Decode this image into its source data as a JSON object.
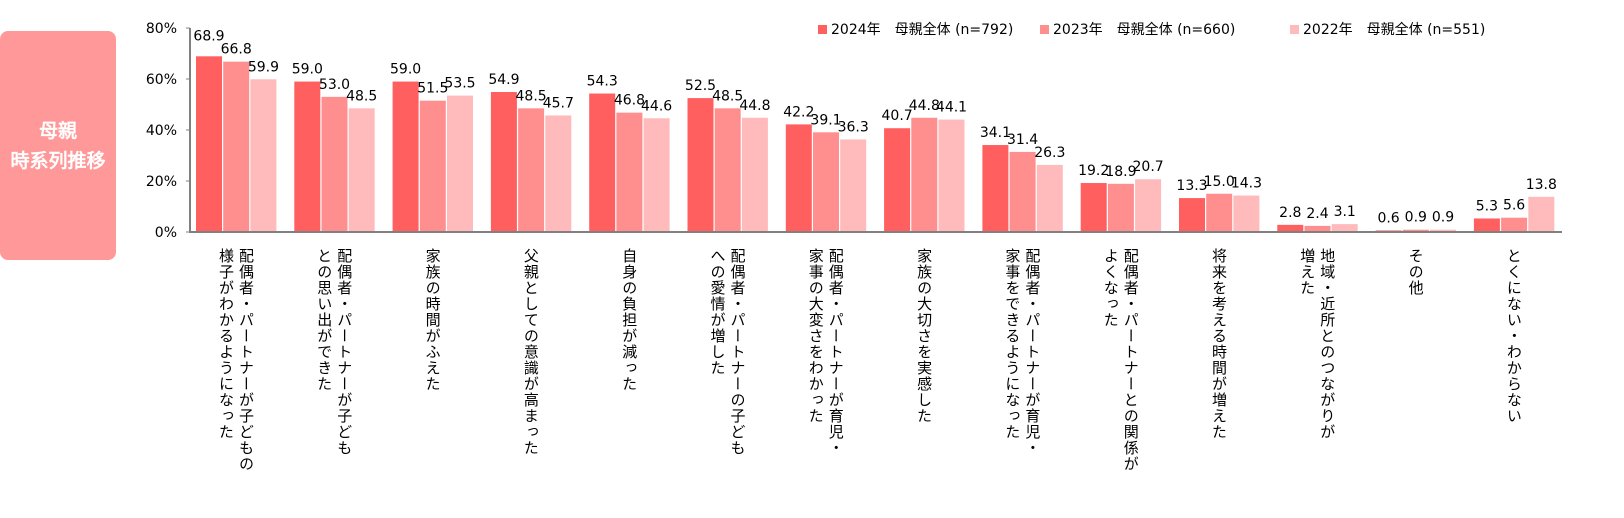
{
  "side_label": "母親\n時系列推移",
  "chart_data": {
    "type": "bar",
    "ylim": [
      0,
      80
    ],
    "yticks": [
      "0%",
      "20%",
      "40%",
      "60%",
      "80%"
    ],
    "legend_position": "top-right",
    "categories": [
      "配偶者・パートナーが子どもの\n様子がわかるようになった",
      "配偶者・パートナーが子ども\nとの思い出ができた",
      "家族の時間がふえた",
      "父親としての意識が高まった",
      "自身の負担が減った",
      "配偶者・パートナーの子ども\nへの愛情が増した",
      "配偶者・パートナーが育児・\n家事の大変さをわかった",
      "家族の大切さを実感した",
      "配偶者・パートナーが育児・\n家事をできるようになった",
      "配偶者・パートナーとの関係が\nよくなった",
      "将来を考える時間が増えた",
      "地域・近所とのつながりが\n増えた",
      "その他",
      "とくにない・わからない"
    ],
    "series": [
      {
        "name": "2024年　母親全体 (n=792)",
        "color": "#ff5f5f",
        "values": [
          68.9,
          59.0,
          59.0,
          54.9,
          54.3,
          52.5,
          42.2,
          40.7,
          34.1,
          19.2,
          13.3,
          2.8,
          0.6,
          5.3
        ]
      },
      {
        "name": "2023年　母親全体 (n=660)",
        "color": "#ff8f8f",
        "values": [
          66.8,
          53.0,
          51.5,
          48.5,
          46.8,
          48.5,
          39.1,
          44.8,
          31.4,
          18.9,
          15.0,
          2.4,
          0.9,
          5.6
        ]
      },
      {
        "name": "2022年　母親全体 (n=551)",
        "color": "#ffbbbb",
        "values": [
          59.9,
          48.5,
          53.5,
          45.7,
          44.6,
          44.8,
          36.3,
          44.1,
          26.3,
          20.7,
          14.3,
          3.1,
          0.9,
          13.8
        ]
      }
    ]
  }
}
